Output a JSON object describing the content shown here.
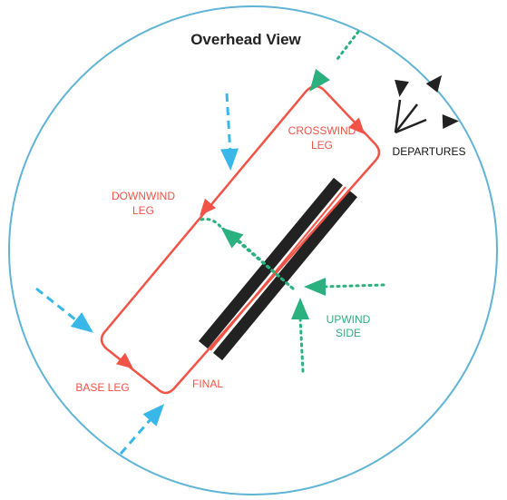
{
  "title": "Overhead View",
  "labels": {
    "crosswind_1": "CROSSWIND",
    "crosswind_2": "LEG",
    "downwind_1": "DOWNWIND",
    "downwind_2": "LEG",
    "base": "BASE LEG",
    "final": "FINAL",
    "upwind_1": "UPWIND",
    "upwind_2": "SIDE",
    "departures": "DEPARTURES"
  },
  "colors": {
    "circle_fill": "#ffffff",
    "circle_stroke": "#5fb4d6",
    "pattern": "#f15346",
    "entry_arrows": "#39b7e8",
    "upwind_arrows": "#2bb07f",
    "runway": "#222222",
    "departures": "#222222",
    "title": "#222222"
  }
}
